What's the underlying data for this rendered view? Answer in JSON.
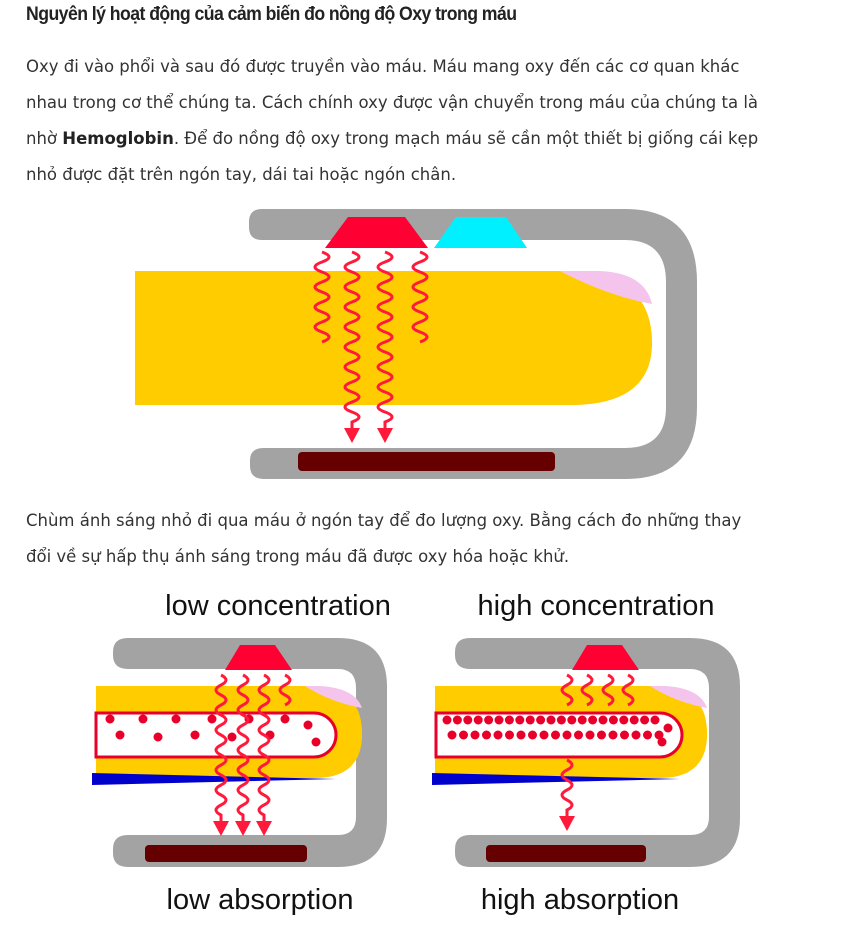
{
  "article": {
    "title": "Nguyên lý hoạt động của cảm biến đo nồng độ Oxy trong máu",
    "paragraph1": {
      "line1": "Oxy đi vào phổi và sau đó được truyền vào máu. Máu mang oxy đến các cơ quan khác",
      "line2": "nhau trong cơ thể chúng ta. Cách chính oxy được vận chuyển trong máu của chúng ta là",
      "line3_before": "nhờ ",
      "line3_bold": "Hemoglobin",
      "line3_after": ". Để đo nồng độ oxy trong mạch máu sẽ cần một thiết bị giống cái kẹp",
      "line4": "nhỏ được đặt trên ngón tay, dái tai hoặc ngón chân."
    },
    "paragraph2": {
      "line1": "Chùm ánh sáng nhỏ đi qua máu ở ngón tay để đo lượng oxy. Bằng cách đo những thay",
      "line2": "đổi về sự hấp thụ ánh sáng trong máu đã được oxy hóa hoặc khử."
    }
  },
  "figure2": {
    "left_top_label": "low concentration",
    "left_bottom_label": "low absorption",
    "right_top_label": "high concentration",
    "right_bottom_label": "high absorption"
  },
  "colors": {
    "clip": "#a3a3a3",
    "finger": "#ffcc00",
    "nail": "#f4c4ec",
    "emitter_red": "#ff0033",
    "emitter_cyan": "#00f0ff",
    "light_wave": "#ff1a3c",
    "detector": "#660000",
    "vein": "#0000cc",
    "blood_cell": "#e8002a",
    "vessel_fill": "#ffffff"
  }
}
